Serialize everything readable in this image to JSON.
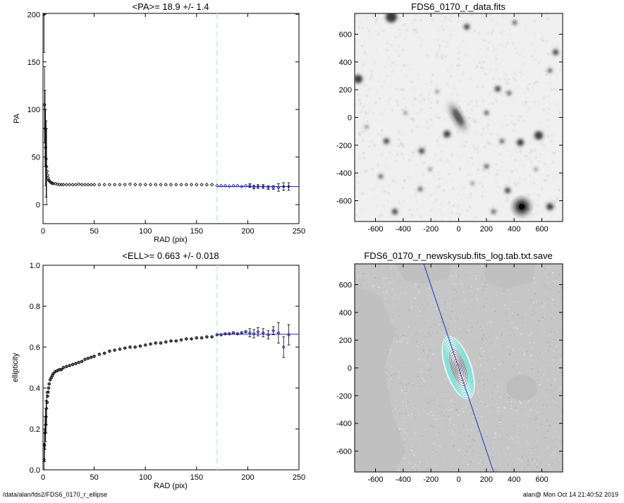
{
  "footer": {
    "path": "/data/alan/fds2/FDS6_0170_r_ellipse",
    "user_time": "alan@  Mon Oct 14 21:40:52 2019"
  },
  "colors": {
    "axis": "#000000",
    "inner_points": "#000000",
    "fit_points": "#1a1aa8",
    "fit_line": "#2a2ad0",
    "marker_line": "#b8f0e8",
    "isophotes": "#7fe0d8",
    "image_bg": "#c8c8c8"
  },
  "images": {
    "top": {
      "title": "FDS6_0170_r_data.fits",
      "xticks": [
        "-600",
        "-400",
        "-200",
        "0",
        "200",
        "400",
        "600"
      ],
      "yticks": [
        "600",
        "400",
        "200",
        "0",
        "-200",
        "-400",
        "-600"
      ]
    },
    "bottom": {
      "title": "FDS6_0170_r_newskysub.fits_log.tab.txt.save",
      "xticks": [
        "-600",
        "-400",
        "-200",
        "0",
        "200",
        "400",
        "600"
      ],
      "yticks": [
        "600",
        "400",
        "200",
        "0",
        "-200",
        "-400",
        "-600"
      ]
    }
  },
  "chart_data": [
    {
      "id": "pa",
      "type": "scatter",
      "title": "<PA>=  18.9 +/-   1.4",
      "xlabel": "RAD (pix)",
      "ylabel": "PA",
      "xlim": [
        0,
        250
      ],
      "ylim": [
        -20,
        201
      ],
      "xticks": [
        0,
        50,
        100,
        150,
        200,
        250
      ],
      "yticks": [
        0,
        50,
        100,
        150,
        200
      ],
      "grid": false,
      "vline_x": 170,
      "fit": {
        "value": 18.9,
        "err": 1.4,
        "x_range": [
          170,
          250
        ]
      },
      "series": [
        {
          "x": [
            1,
            1.5,
            2,
            2.5,
            3,
            3.5,
            4,
            4.5,
            5,
            5.5,
            6,
            7,
            8,
            9,
            10,
            12,
            14,
            16,
            18,
            20,
            23,
            26,
            29,
            32,
            35,
            38,
            41,
            44,
            47,
            50,
            55,
            60,
            65,
            70,
            75,
            80,
            85,
            90,
            95,
            100,
            105,
            110,
            115,
            120,
            125,
            130,
            135,
            140,
            145,
            150,
            155,
            160,
            165
          ],
          "y": [
            200,
            105,
            80,
            60,
            48,
            40,
            35,
            31,
            28,
            26,
            25,
            24,
            23,
            22.5,
            22,
            22,
            21.5,
            21,
            21,
            21,
            21,
            21,
            21,
            21,
            21.5,
            21,
            21,
            21,
            21,
            21,
            21,
            21,
            21,
            21,
            21,
            21,
            21.5,
            21,
            21,
            21,
            21,
            21,
            21,
            21,
            21,
            21,
            21,
            21,
            21,
            21,
            21,
            21,
            21
          ]
        },
        {
          "x": [
            170,
            174,
            178,
            182,
            186,
            190,
            194,
            198,
            202,
            206,
            210,
            215,
            220,
            225,
            230,
            235,
            240
          ],
          "y": [
            20,
            20,
            20,
            19.5,
            20,
            20,
            19,
            20,
            20,
            18.5,
            19,
            19,
            18,
            18,
            18,
            19,
            19
          ]
        }
      ]
    },
    {
      "id": "ell",
      "type": "scatter",
      "title": "<ELL>= 0.663 +/-  0.018",
      "xlabel": "RAD (pix)",
      "ylabel": "ellipticity",
      "xlim": [
        0,
        250
      ],
      "ylim": [
        0,
        1
      ],
      "xticks": [
        0,
        50,
        100,
        150,
        200,
        250
      ],
      "yticks": [
        0.0,
        0.2,
        0.4,
        0.6,
        0.8,
        1.0
      ],
      "grid": false,
      "vline_x": 170,
      "fit": {
        "value": 0.663,
        "err": 0.018,
        "x_range": [
          170,
          250
        ]
      },
      "series": [
        {
          "x": [
            1,
            1.5,
            2,
            2.5,
            3,
            3.5,
            4,
            4.5,
            5,
            5.5,
            6,
            7,
            8,
            9,
            10,
            12,
            14,
            16,
            18,
            20,
            23,
            26,
            29,
            32,
            35,
            38,
            41,
            44,
            47,
            50,
            55,
            60,
            65,
            70,
            75,
            80,
            85,
            90,
            95,
            100,
            105,
            110,
            115,
            120,
            125,
            130,
            135,
            140,
            145,
            150,
            155,
            160,
            165
          ],
          "y": [
            0.05,
            0.12,
            0.18,
            0.22,
            0.26,
            0.3,
            0.33,
            0.36,
            0.38,
            0.4,
            0.42,
            0.44,
            0.45,
            0.46,
            0.47,
            0.48,
            0.485,
            0.49,
            0.49,
            0.5,
            0.505,
            0.51,
            0.515,
            0.52,
            0.525,
            0.53,
            0.54,
            0.545,
            0.55,
            0.555,
            0.565,
            0.57,
            0.58,
            0.585,
            0.59,
            0.595,
            0.6,
            0.6,
            0.605,
            0.61,
            0.615,
            0.62,
            0.62,
            0.625,
            0.63,
            0.63,
            0.635,
            0.64,
            0.64,
            0.645,
            0.645,
            0.65,
            0.65
          ]
        },
        {
          "x": [
            170,
            174,
            178,
            182,
            186,
            190,
            194,
            198,
            202,
            206,
            210,
            215,
            220,
            225,
            230,
            235,
            240
          ],
          "y": [
            0.66,
            0.66,
            0.665,
            0.665,
            0.67,
            0.665,
            0.67,
            0.675,
            0.67,
            0.665,
            0.675,
            0.67,
            0.66,
            0.68,
            0.67,
            0.6,
            0.66
          ]
        }
      ]
    }
  ]
}
